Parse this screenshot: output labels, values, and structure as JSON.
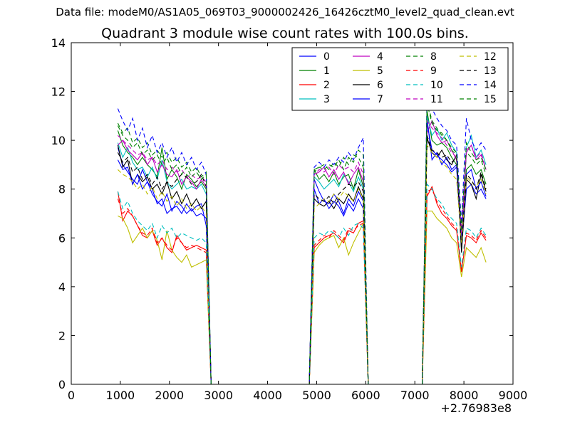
{
  "suptitle": "Data file: modeM0/AS1A05_069T03_9000002426_16426cztM0_level2_quad_clean.evt",
  "chart_data": {
    "type": "line",
    "title": "Quadrant 3 module wise count rates with 100.0s bins.",
    "xlabel": "",
    "ylabel": "",
    "x_offset_label": "+2.76983e8",
    "xlim": [
      0,
      9000
    ],
    "ylim": [
      0,
      14
    ],
    "xticks": [
      0,
      1000,
      2000,
      3000,
      4000,
      5000,
      6000,
      7000,
      8000,
      9000
    ],
    "yticks": [
      0,
      2,
      4,
      6,
      8,
      10,
      12,
      14
    ],
    "grid": false,
    "legend_position": "top-right",
    "x_segments": [
      {
        "start": 950,
        "end": 2750,
        "step": 100
      },
      {
        "start": 2850,
        "end": 4850,
        "step": 100
      },
      {
        "start": 4950,
        "end": 5950,
        "step": 100
      },
      {
        "start": 6050,
        "end": 7150,
        "step": 100
      },
      {
        "start": 7250,
        "end": 8450,
        "step": 100
      }
    ],
    "series": [
      {
        "name": "0",
        "color": "#0000ff",
        "dash": "solid",
        "seg1": [
          9.7,
          9.0,
          8.7,
          8.4,
          8.2,
          8.8,
          8.3,
          8.0,
          7.4,
          7.6,
          7.0,
          7.2,
          7.3,
          7.0,
          7.4,
          7.1,
          7.3,
          7.4,
          6.5
        ],
        "seg3": [
          8.4,
          7.9,
          7.5,
          7.4,
          7.8,
          7.5,
          7.0,
          7.6,
          7.3,
          7.9,
          7.5
        ],
        "seg5": [
          10.9,
          9.2,
          9.5,
          9.0,
          9.3,
          8.8,
          9.0,
          5.6,
          8.0,
          8.2,
          7.8,
          8.0,
          7.6
        ]
      },
      {
        "name": "1",
        "color": "#008000",
        "dash": "solid",
        "seg1": [
          10.4,
          9.8,
          9.5,
          9.3,
          9.0,
          9.3,
          9.0,
          8.8,
          8.5,
          9.7,
          8.4,
          8.8,
          8.5,
          8.0,
          8.6,
          8.4,
          8.1,
          8.3,
          8.0
        ],
        "seg3": [
          8.8,
          8.4,
          8.6,
          8.3,
          8.7,
          8.2,
          8.5,
          8.6,
          8.0,
          8.8,
          8.1
        ],
        "seg5": [
          11.2,
          10.0,
          9.8,
          9.9,
          9.7,
          9.3,
          9.0,
          5.8,
          8.8,
          9.0,
          8.6,
          8.8,
          8.2
        ]
      },
      {
        "name": "2",
        "color": "#ff0000",
        "dash": "solid",
        "seg1": [
          7.9,
          6.7,
          7.1,
          6.9,
          6.5,
          6.1,
          6.0,
          6.3,
          5.7,
          6.0,
          5.6,
          5.4,
          6.1,
          5.8,
          5.5,
          5.6,
          5.7,
          5.6,
          5.5
        ],
        "seg3": [
          5.6,
          5.8,
          6.0,
          6.1,
          6.2,
          6.0,
          5.8,
          6.3,
          6.2,
          6.6,
          6.7
        ],
        "seg5": [
          7.7,
          8.1,
          7.4,
          7.0,
          6.8,
          6.5,
          6.3,
          4.6,
          6.1,
          6.0,
          5.8,
          6.2,
          5.9
        ]
      },
      {
        "name": "3",
        "color": "#00bfbf",
        "dash": "solid",
        "seg1": [
          9.9,
          9.3,
          9.7,
          9.1,
          8.8,
          8.9,
          8.5,
          8.9,
          8.4,
          9.2,
          8.3,
          8.0,
          8.2,
          8.4,
          8.0,
          8.1,
          8.0,
          8.2,
          7.8
        ],
        "seg3": [
          8.5,
          8.3,
          8.0,
          8.2,
          8.4,
          8.1,
          8.6,
          8.3,
          7.9,
          8.5,
          8.0
        ],
        "seg5": [
          11.0,
          10.2,
          10.5,
          10.0,
          10.3,
          9.8,
          9.5,
          6.0,
          9.7,
          10.2,
          9.3,
          9.6,
          9.0
        ]
      },
      {
        "name": "4",
        "color": "#bf00bf",
        "dash": "solid",
        "seg1": [
          9.8,
          10.0,
          9.6,
          9.4,
          9.2,
          9.5,
          9.0,
          9.3,
          8.7,
          9.0,
          8.6,
          8.5,
          8.8,
          8.2,
          8.5,
          8.3,
          8.0,
          8.4,
          8.1
        ],
        "seg3": [
          8.6,
          8.7,
          8.9,
          8.5,
          8.8,
          8.4,
          8.7,
          8.2,
          8.6,
          8.9,
          8.3
        ],
        "seg5": [
          10.3,
          10.8,
          10.2,
          9.9,
          10.0,
          9.6,
          9.2,
          6.0,
          9.5,
          9.8,
          9.2,
          9.4,
          8.8
        ]
      },
      {
        "name": "5",
        "color": "#bfbf00",
        "dash": "solid",
        "seg1": [
          6.9,
          6.8,
          6.4,
          5.8,
          6.1,
          6.4,
          6.0,
          6.3,
          5.9,
          5.1,
          6.3,
          5.5,
          5.2,
          5.0,
          5.3,
          4.8,
          4.9,
          5.0,
          5.1
        ],
        "seg3": [
          5.4,
          5.7,
          5.9,
          6.0,
          6.1,
          5.6,
          6.0,
          5.3,
          5.8,
          6.2,
          6.6
        ],
        "seg5": [
          7.1,
          7.1,
          6.8,
          6.6,
          6.4,
          6.0,
          5.8,
          4.4,
          5.6,
          5.4,
          5.2,
          5.6,
          5.0
        ]
      },
      {
        "name": "6",
        "color": "#000000",
        "dash": "solid",
        "seg1": [
          9.8,
          8.9,
          9.2,
          8.2,
          8.6,
          8.3,
          8.5,
          8.0,
          8.2,
          7.8,
          8.3,
          7.6,
          7.9,
          7.4,
          7.8,
          7.3,
          7.6,
          7.2,
          7.5
        ],
        "seg3": [
          7.6,
          7.4,
          7.3,
          7.5,
          7.2,
          7.6,
          7.4,
          7.8,
          7.5,
          8.1,
          7.6
        ],
        "seg5": [
          10.1,
          9.5,
          9.3,
          9.6,
          9.2,
          9.0,
          9.4,
          5.4,
          8.4,
          8.2,
          7.6,
          8.6,
          7.9
        ]
      },
      {
        "name": "7",
        "color": "#0000ff",
        "dash": "solid",
        "seg1": [
          9.2,
          8.8,
          8.9,
          8.2,
          8.6,
          8.0,
          8.3,
          7.8,
          7.5,
          7.3,
          7.8,
          7.1,
          7.5,
          7.3,
          7.0,
          7.2,
          6.9,
          7.0,
          6.8
        ],
        "seg3": [
          8.0,
          7.4,
          7.6,
          7.2,
          7.5,
          7.3,
          6.9,
          7.4,
          7.1,
          7.6,
          7.2
        ],
        "seg5": [
          10.7,
          9.6,
          9.4,
          9.2,
          9.0,
          8.7,
          8.9,
          5.9,
          8.6,
          8.8,
          8.0,
          8.3,
          7.7
        ]
      },
      {
        "name": "8",
        "color": "#008000",
        "dash": "dashed",
        "seg1": [
          10.7,
          10.3,
          10.5,
          9.9,
          10.1,
          9.7,
          9.9,
          9.4,
          9.6,
          9.3,
          9.5,
          9.1,
          9.3,
          8.9,
          9.1,
          8.7,
          8.9,
          8.5,
          8.7
        ],
        "seg3": [
          8.8,
          8.9,
          9.0,
          8.8,
          9.1,
          8.9,
          9.3,
          9.0,
          9.4,
          9.3,
          8.9
        ],
        "seg5": [
          11.6,
          10.8,
          10.5,
          10.2,
          10.0,
          9.6,
          9.4,
          6.3,
          9.5,
          9.3,
          9.0,
          9.2,
          8.6
        ]
      },
      {
        "name": "9",
        "color": "#ff0000",
        "dash": "dashed",
        "seg1": [
          7.6,
          7.0,
          7.2,
          6.9,
          6.5,
          6.2,
          6.1,
          6.4,
          5.8,
          6.0,
          5.7,
          5.5,
          6.0,
          5.8,
          5.6,
          5.7,
          5.6,
          5.5,
          5.4
        ],
        "seg3": [
          5.7,
          5.9,
          6.1,
          6.0,
          6.3,
          6.1,
          5.9,
          6.4,
          6.3,
          6.5,
          6.6
        ],
        "seg5": [
          7.9,
          8.0,
          7.5,
          7.2,
          6.9,
          6.6,
          6.4,
          4.7,
          6.2,
          6.1,
          5.9,
          6.3,
          6.0
        ]
      },
      {
        "name": "10",
        "color": "#00bfbf",
        "dash": "dashed",
        "seg1": [
          7.9,
          7.2,
          7.5,
          7.0,
          6.7,
          6.5,
          6.3,
          6.6,
          6.0,
          6.5,
          6.2,
          6.4,
          6.0,
          6.2,
          6.1,
          6.0,
          5.9,
          6.0,
          5.8
        ],
        "seg3": [
          6.0,
          6.2,
          6.1,
          6.3,
          6.2,
          6.0,
          6.4,
          6.1,
          6.5,
          6.6,
          6.4
        ],
        "seg5": [
          8.2,
          8.0,
          7.6,
          7.4,
          7.0,
          6.8,
          6.6,
          4.8,
          6.4,
          6.3,
          6.0,
          6.4,
          6.1
        ]
      },
      {
        "name": "11",
        "color": "#bf00bf",
        "dash": "dashed",
        "seg1": [
          10.2,
          10.0,
          9.8,
          9.6,
          9.4,
          9.5,
          9.2,
          9.3,
          9.0,
          9.2,
          8.8,
          8.9,
          8.7,
          8.8,
          8.5,
          8.6,
          8.4,
          8.5,
          8.3
        ],
        "seg3": [
          8.6,
          8.8,
          8.7,
          8.9,
          8.6,
          9.0,
          8.8,
          8.9,
          8.7,
          9.1,
          8.6
        ],
        "seg5": [
          10.8,
          10.5,
          10.3,
          10.1,
          9.8,
          9.5,
          9.3,
          6.2,
          9.6,
          9.8,
          9.3,
          9.5,
          8.8
        ]
      },
      {
        "name": "12",
        "color": "#bfbf00",
        "dash": "dashed",
        "seg1": [
          8.8,
          8.6,
          8.5,
          8.3,
          8.0,
          8.2,
          7.8,
          8.1,
          7.6,
          7.9,
          7.5,
          7.7,
          7.3,
          7.6,
          7.2,
          7.4,
          7.1,
          7.3,
          7.0
        ],
        "seg3": [
          7.2,
          7.4,
          7.6,
          7.5,
          7.8,
          7.6,
          7.9,
          7.7,
          7.5,
          8.0,
          7.6
        ],
        "seg5": [
          9.8,
          9.5,
          9.3,
          9.1,
          8.9,
          8.6,
          8.4,
          5.8,
          8.5,
          8.3,
          8.1,
          8.4,
          7.8
        ]
      },
      {
        "name": "13",
        "color": "#000000",
        "dash": "dashed",
        "seg1": [
          9.5,
          9.1,
          9.3,
          8.7,
          8.9,
          8.4,
          8.6,
          8.2,
          8.5,
          8.0,
          8.3,
          8.1,
          8.4,
          8.6,
          8.5,
          8.2,
          8.3,
          8.6,
          8.1
        ],
        "seg3": [
          7.8,
          7.6,
          7.5,
          7.7,
          7.4,
          7.8,
          8.0,
          8.2,
          8.1,
          8.3,
          7.9
        ],
        "seg5": [
          10.2,
          9.6,
          9.5,
          9.3,
          9.4,
          9.1,
          9.3,
          5.5,
          8.6,
          8.4,
          8.0,
          8.7,
          8.0
        ]
      },
      {
        "name": "14",
        "color": "#0000ff",
        "dash": "dashed",
        "seg1": [
          11.3,
          10.8,
          10.4,
          10.9,
          10.0,
          10.5,
          9.7,
          10.2,
          9.5,
          9.9,
          9.3,
          9.7,
          9.1,
          9.5,
          9.0,
          9.3,
          8.8,
          9.1,
          8.6
        ],
        "seg3": [
          8.9,
          9.1,
          8.9,
          9.2,
          9.0,
          9.3,
          9.1,
          9.5,
          9.2,
          9.7,
          10.1
        ],
        "seg5": [
          12.0,
          11.3,
          10.9,
          10.6,
          10.4,
          10.0,
          9.8,
          6.6,
          10.9,
          10.0,
          9.6,
          9.9,
          9.6
        ]
      },
      {
        "name": "15",
        "color": "#008000",
        "dash": "dashed",
        "seg1": [
          10.6,
          10.2,
          10.0,
          9.7,
          9.9,
          9.4,
          9.6,
          9.2,
          9.4,
          9.0,
          9.3,
          8.8,
          9.0,
          8.6,
          8.9,
          8.5,
          8.7,
          8.4,
          8.6
        ],
        "seg3": [
          8.7,
          8.9,
          8.8,
          9.0,
          8.9,
          9.2,
          8.8,
          9.3,
          9.1,
          9.6,
          9.4
        ],
        "seg5": [
          11.5,
          10.7,
          10.4,
          10.3,
          10.0,
          9.7,
          9.5,
          6.4,
          9.9,
          9.5,
          9.2,
          9.3,
          8.8
        ]
      }
    ]
  }
}
